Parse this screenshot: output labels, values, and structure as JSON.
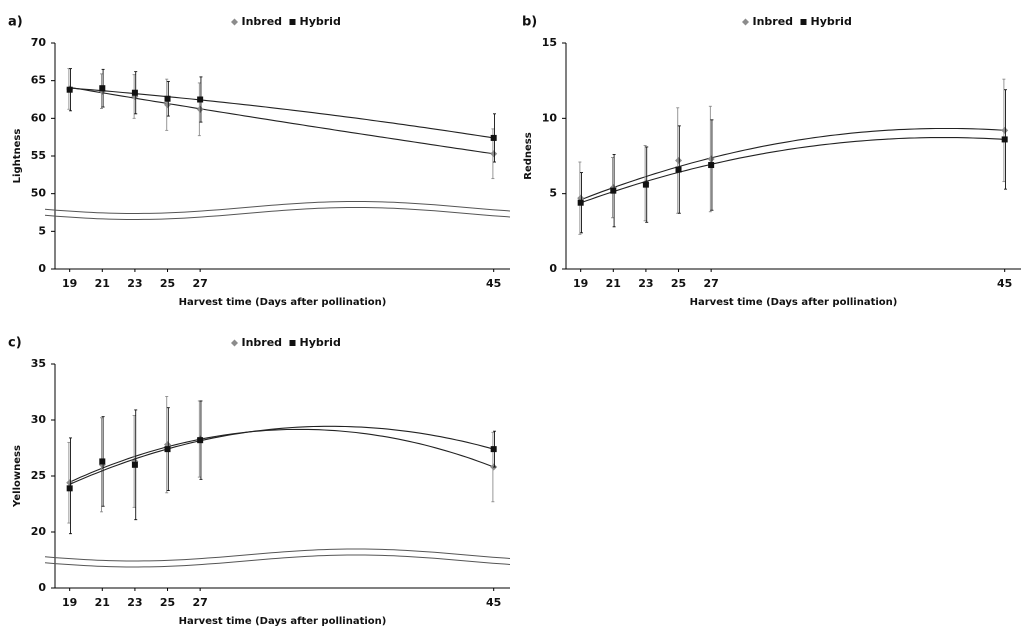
{
  "chart_data": [
    {
      "type": "scatter",
      "label": "a)",
      "x_label": "Harvest time (Days after pollination)",
      "y_label": "Lightness",
      "x": [
        19,
        21,
        23,
        25,
        27,
        45
      ],
      "xlim": [
        18.1,
        46
      ],
      "xticks": [
        19,
        21,
        23,
        25,
        27,
        45
      ],
      "ylim": [
        0,
        70
      ],
      "yticks": [
        0,
        5,
        50,
        55,
        60,
        65,
        70
      ],
      "axis_break": true,
      "trendline": "polynomial",
      "legend": "top",
      "series": [
        {
          "name": "Inbred",
          "color": "#8c8c8c",
          "marker": "diamond",
          "values": [
            63.9,
            63.6,
            62.9,
            61.8,
            61.2,
            55.3
          ],
          "errors": [
            2.7,
            2.3,
            2.9,
            3.4,
            3.5,
            3.3
          ]
        },
        {
          "name": "Hybrid",
          "color": "#111111",
          "marker": "square",
          "values": [
            63.8,
            64.0,
            63.4,
            62.6,
            62.5,
            57.4
          ],
          "errors": [
            2.8,
            2.5,
            2.8,
            2.3,
            3.0,
            3.2
          ]
        }
      ]
    },
    {
      "type": "scatter",
      "label": "b)",
      "x_label": "Harvest time (Days after pollination)",
      "y_label": "Redness",
      "x": [
        19,
        21,
        23,
        25,
        27,
        45
      ],
      "xlim": [
        18.1,
        46
      ],
      "xticks": [
        19,
        21,
        23,
        25,
        27,
        45
      ],
      "ylim": [
        0,
        15
      ],
      "yticks": [
        0,
        5,
        10,
        15
      ],
      "axis_break": false,
      "trendline": "polynomial",
      "legend": "top",
      "series": [
        {
          "name": "Inbred",
          "color": "#8c8c8c",
          "marker": "diamond",
          "values": [
            4.7,
            5.4,
            5.7,
            7.2,
            7.3,
            9.2
          ],
          "errors": [
            2.4,
            2.0,
            2.5,
            3.5,
            3.5,
            3.4
          ]
        },
        {
          "name": "Hybrid",
          "color": "#111111",
          "marker": "square",
          "values": [
            4.4,
            5.2,
            5.6,
            6.6,
            6.9,
            8.6
          ],
          "errors": [
            2.0,
            2.4,
            2.5,
            2.9,
            3.0,
            3.3
          ]
        }
      ]
    },
    {
      "type": "scatter",
      "label": "c)",
      "x_label": "Harvest time (Days after pollination)",
      "y_label": "Yellowness",
      "x": [
        19,
        21,
        23,
        25,
        27,
        45
      ],
      "xlim": [
        18.1,
        46
      ],
      "xticks": [
        19,
        21,
        23,
        25,
        27,
        45
      ],
      "ylim": [
        0,
        35
      ],
      "yticks": [
        0,
        20,
        25,
        30,
        35
      ],
      "axis_break": true,
      "trendline": "polynomial",
      "legend": "top",
      "series": [
        {
          "name": "Inbred",
          "color": "#8c8c8c",
          "marker": "diamond",
          "values": [
            24.4,
            26.0,
            26.3,
            27.8,
            28.3,
            25.8
          ],
          "errors": [
            3.6,
            4.2,
            4.1,
            4.3,
            3.4,
            3.1
          ]
        },
        {
          "name": "Hybrid",
          "color": "#111111",
          "marker": "square",
          "values": [
            23.9,
            26.3,
            26.0,
            27.4,
            28.2,
            27.4
          ],
          "errors": [
            4.5,
            4.0,
            4.9,
            3.7,
            3.5,
            1.6
          ]
        }
      ]
    }
  ]
}
